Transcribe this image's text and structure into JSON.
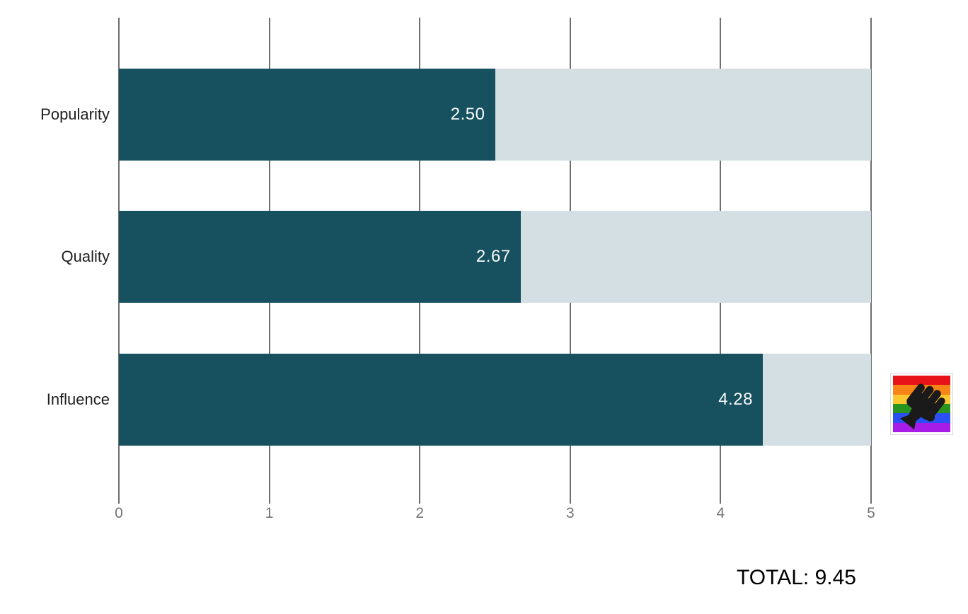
{
  "chart_data": {
    "type": "bar",
    "orientation": "horizontal",
    "title": "",
    "xlabel": "",
    "ylabel": "",
    "categories": [
      "Popularity",
      "Quality",
      "Influence"
    ],
    "values": [
      2.5,
      2.67,
      4.28
    ],
    "value_labels": [
      "2.50",
      "2.67",
      "4.28"
    ],
    "xticks": [
      "0",
      "1",
      "2",
      "3",
      "4",
      "5"
    ],
    "xlim": [
      0,
      5
    ],
    "grid": true,
    "legend": "none",
    "bar_color": "#17505f",
    "track_color": "#d3dfe3",
    "total_label": "TOTAL: 9.45"
  },
  "icons": {
    "blm_pride_flag": {
      "description": "rainbow pride flag with black raised fist",
      "stripe_colors": [
        "#e81219",
        "#f88317",
        "#fdc72f",
        "#2a9421",
        "#2b4ff2",
        "#a81ce8"
      ],
      "fist_color": "#1a1a1a"
    }
  },
  "colors": {
    "gridline": "#6e6e6e",
    "tick_text": "#757575",
    "category_text": "#1f1f1f",
    "value_text": "#f7fafa",
    "background": "#ffffff"
  }
}
